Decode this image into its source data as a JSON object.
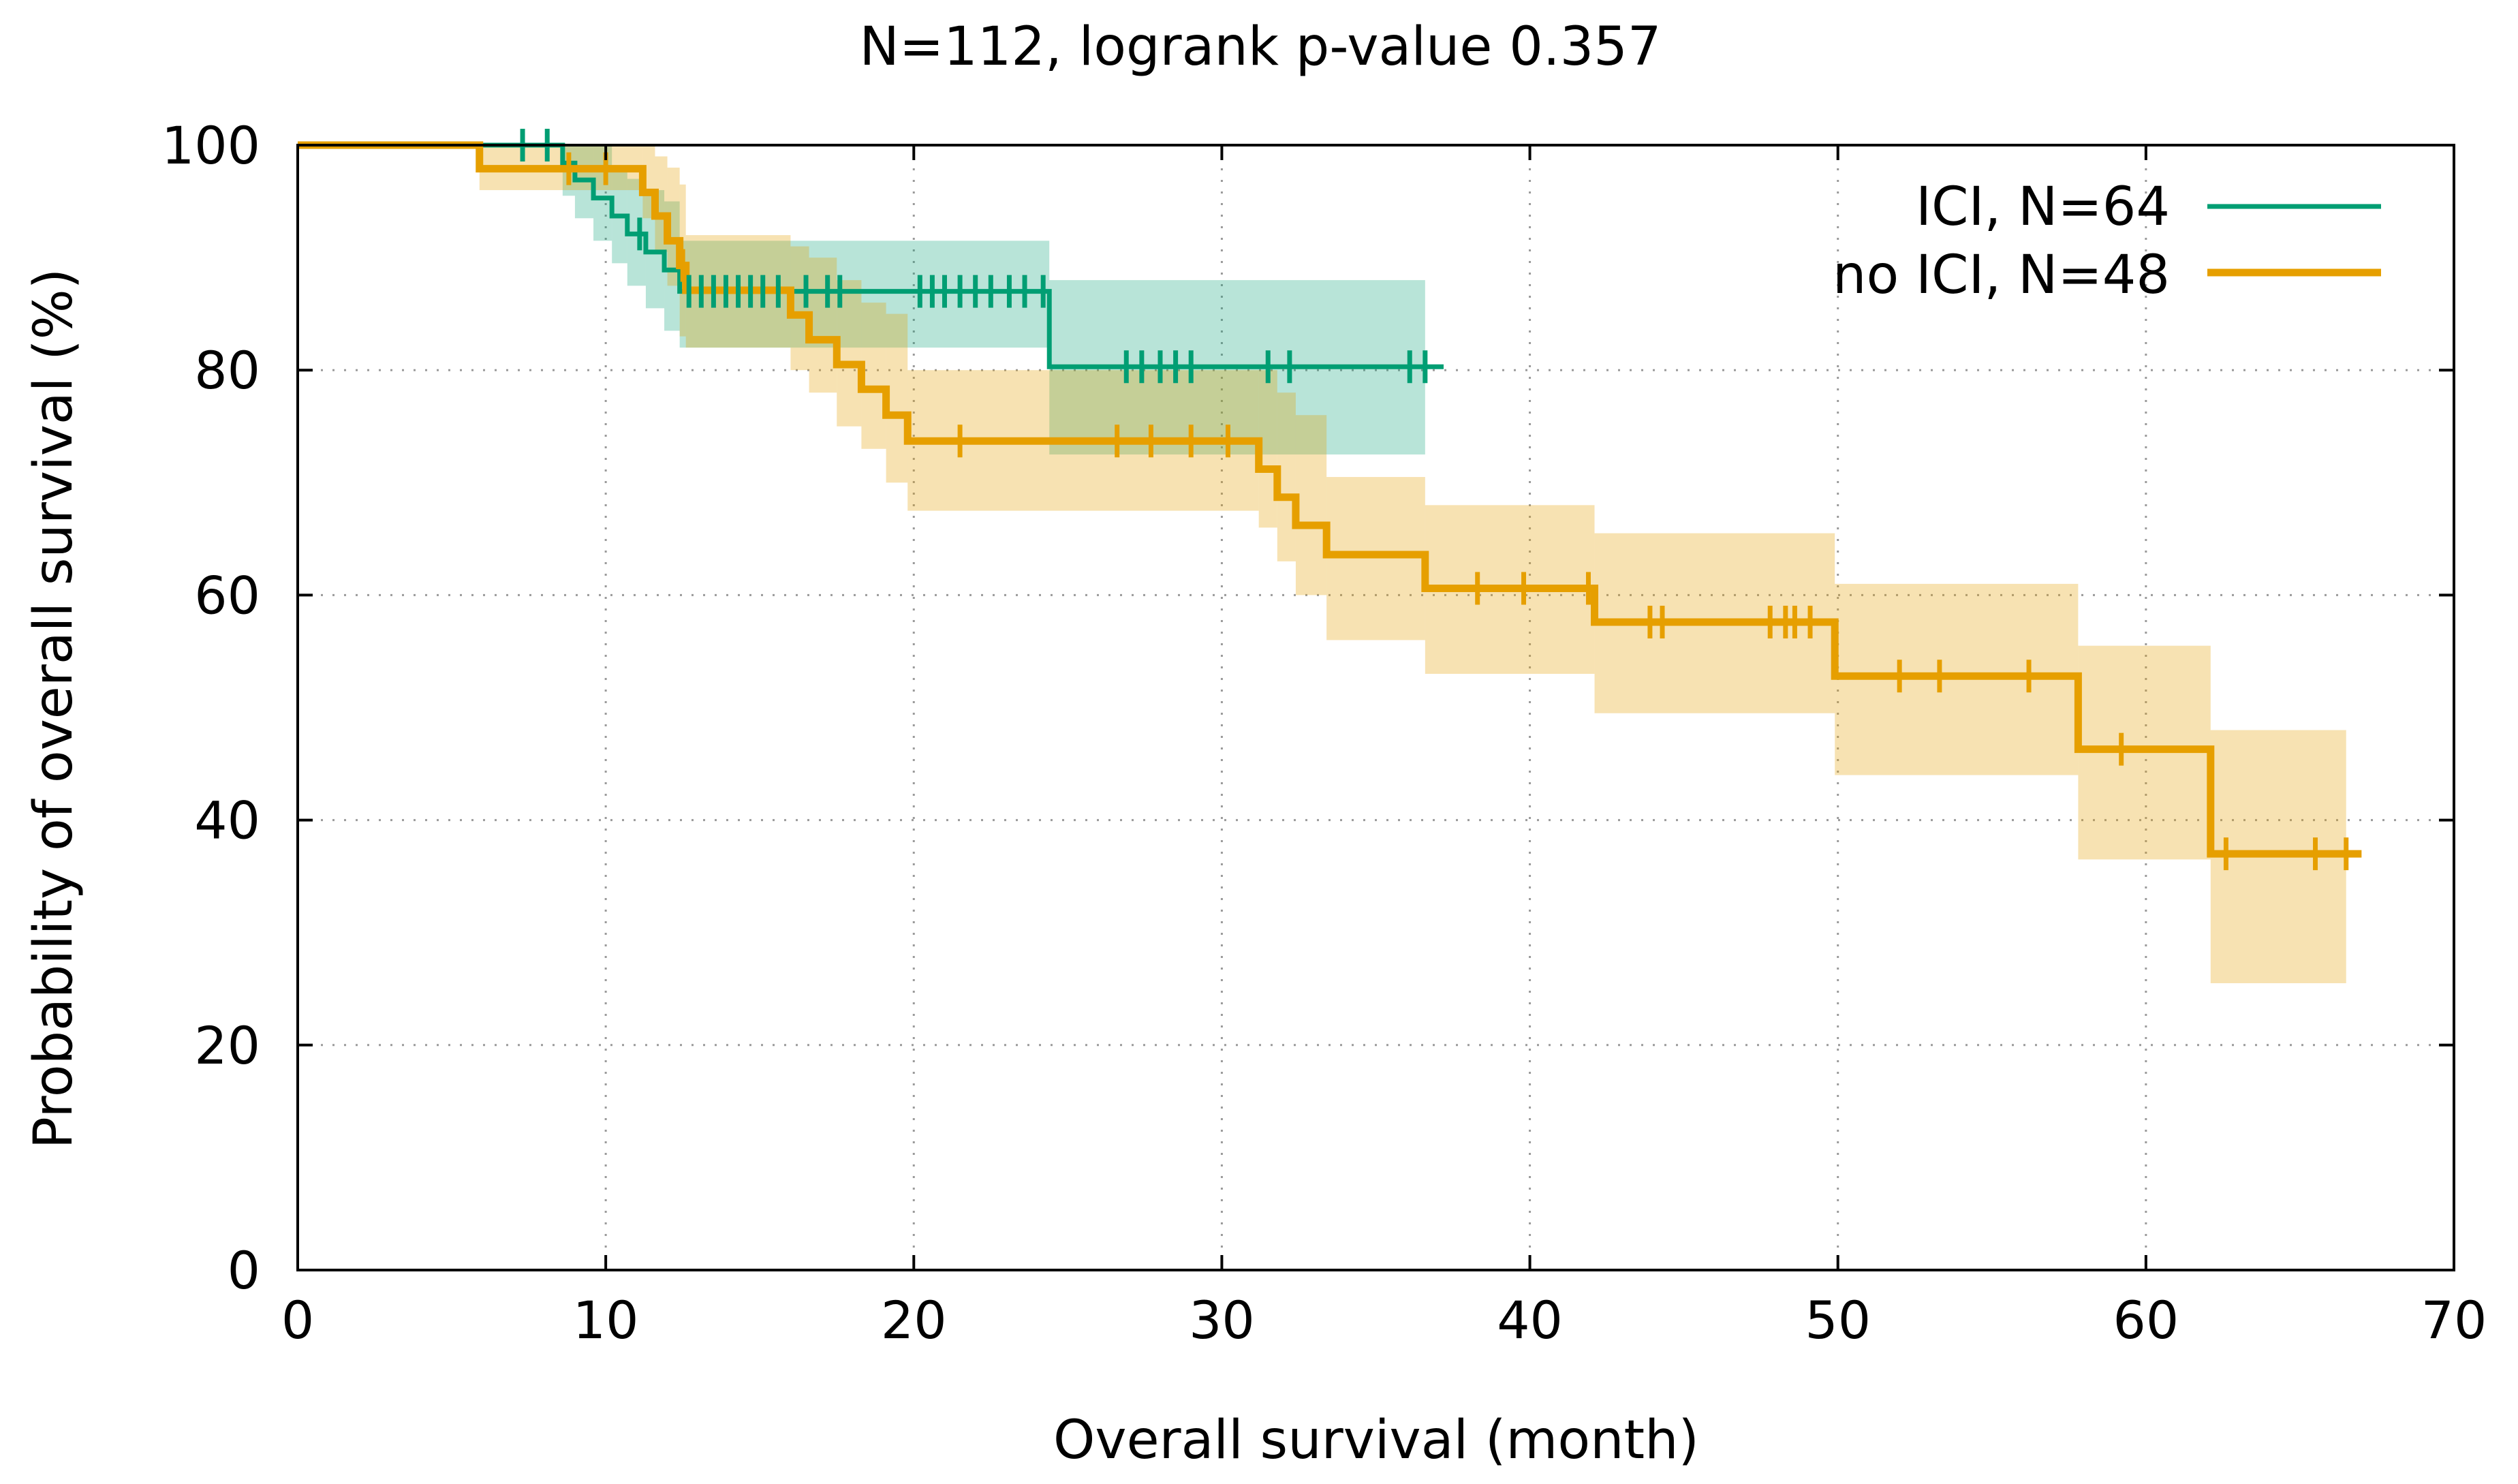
{
  "chart_data": {
    "type": "line",
    "subtype": "kaplan-meier",
    "title": "N=112, logrank p-value 0.357",
    "xlabel": "Overall survival (month)",
    "ylabel": "Probability of overall survival (%)",
    "xlim": [
      0,
      70
    ],
    "ylim": [
      0,
      100
    ],
    "xticks": [
      0,
      10,
      20,
      30,
      40,
      50,
      60,
      70
    ],
    "yticks": [
      0,
      20,
      40,
      60,
      80,
      100
    ],
    "grid": true,
    "legend_position": "top-right",
    "series": [
      {
        "name": "ICI, N=64",
        "color": "#009e73",
        "ci_color": "#009e73",
        "steps": [
          [
            0,
            100
          ],
          [
            8.3,
            100
          ],
          [
            8.6,
            98.4
          ],
          [
            9.0,
            96.9
          ],
          [
            9.6,
            95.3
          ],
          [
            10.2,
            93.7
          ],
          [
            10.7,
            92.1
          ],
          [
            11.3,
            90.5
          ],
          [
            11.9,
            88.9
          ],
          [
            12.4,
            87.0
          ],
          [
            24.4,
            87.0
          ],
          [
            24.4,
            80.3
          ],
          [
            37.2,
            80.3
          ]
        ],
        "ci_steps": [
          [
            0,
            100,
            100
          ],
          [
            8.3,
            100,
            100
          ],
          [
            8.6,
            95.5,
            100
          ],
          [
            9.0,
            93.5,
            100
          ],
          [
            9.6,
            91.5,
            100
          ],
          [
            10.2,
            89.5,
            98.0
          ],
          [
            10.7,
            87.5,
            97.0
          ],
          [
            11.3,
            85.5,
            96.0
          ],
          [
            11.9,
            83.5,
            95.0
          ],
          [
            12.4,
            82.0,
            91.5
          ],
          [
            24.4,
            72.5,
            88.0
          ],
          [
            36.6,
            72.5,
            88.0
          ]
        ],
        "censored": [
          7.3,
          8.1,
          11.1,
          12.7,
          13.1,
          13.5,
          13.9,
          14.3,
          14.7,
          15.1,
          15.6,
          16.5,
          17.2,
          17.6,
          20.2,
          20.6,
          21.0,
          21.5,
          22.0,
          22.5,
          23.1,
          23.6,
          24.2,
          26.9,
          27.4,
          28.0,
          28.5,
          29.0,
          31.5,
          32.2,
          36.1,
          36.6
        ]
      },
      {
        "name": "no ICI, N=48",
        "color": "#e69f00",
        "ci_color": "#e69f00",
        "steps": [
          [
            0,
            100
          ],
          [
            5.9,
            100
          ],
          [
            5.9,
            97.9
          ],
          [
            11.2,
            97.9
          ],
          [
            11.2,
            95.8
          ],
          [
            11.6,
            93.7
          ],
          [
            12.0,
            91.5
          ],
          [
            12.4,
            89.3
          ],
          [
            12.6,
            87.1
          ],
          [
            16.0,
            87.1
          ],
          [
            16.0,
            84.9
          ],
          [
            16.6,
            82.7
          ],
          [
            17.5,
            80.5
          ],
          [
            18.3,
            78.3
          ],
          [
            19.1,
            76.0
          ],
          [
            19.8,
            73.7
          ],
          [
            31.2,
            73.7
          ],
          [
            31.2,
            71.2
          ],
          [
            31.8,
            68.7
          ],
          [
            32.4,
            66.2
          ],
          [
            33.4,
            63.6
          ],
          [
            36.6,
            63.6
          ],
          [
            36.6,
            60.6
          ],
          [
            42.1,
            60.6
          ],
          [
            42.1,
            57.6
          ],
          [
            49.9,
            57.6
          ],
          [
            49.9,
            52.8
          ],
          [
            57.8,
            52.8
          ],
          [
            57.8,
            46.3
          ],
          [
            62.1,
            46.3
          ],
          [
            62.1,
            37.0
          ],
          [
            67.0,
            37.0
          ]
        ],
        "ci_steps": [
          [
            0,
            100,
            100
          ],
          [
            5.9,
            96.0,
            100
          ],
          [
            11.2,
            93.5,
            100
          ],
          [
            11.6,
            90.5,
            99.0
          ],
          [
            12.0,
            87.5,
            98.0
          ],
          [
            12.4,
            83.0,
            96.5
          ],
          [
            12.6,
            82.0,
            92.0
          ],
          [
            16.0,
            80.0,
            91.0
          ],
          [
            16.6,
            78.0,
            90.0
          ],
          [
            17.5,
            75.0,
            88.0
          ],
          [
            18.3,
            73.0,
            86.0
          ],
          [
            19.1,
            70.0,
            85.0
          ],
          [
            19.8,
            67.5,
            80.0
          ],
          [
            31.2,
            66.0,
            80.0
          ],
          [
            31.8,
            63.0,
            78.0
          ],
          [
            32.4,
            60.0,
            76.0
          ],
          [
            33.4,
            56.0,
            70.5
          ],
          [
            36.6,
            53.0,
            68.0
          ],
          [
            42.1,
            49.5,
            65.5
          ],
          [
            49.9,
            44.0,
            61.0
          ],
          [
            57.8,
            36.5,
            55.5
          ],
          [
            62.1,
            25.5,
            48.0
          ],
          [
            66.5,
            25.5,
            48.0
          ]
        ],
        "censored": [
          8.8,
          10.0,
          12.5,
          21.5,
          26.6,
          27.7,
          29.0,
          30.2,
          38.3,
          39.8,
          41.9,
          43.9,
          44.3,
          47.8,
          48.3,
          48.6,
          49.1,
          52.0,
          53.3,
          56.2,
          59.2,
          62.6,
          65.5,
          66.5
        ]
      }
    ]
  }
}
